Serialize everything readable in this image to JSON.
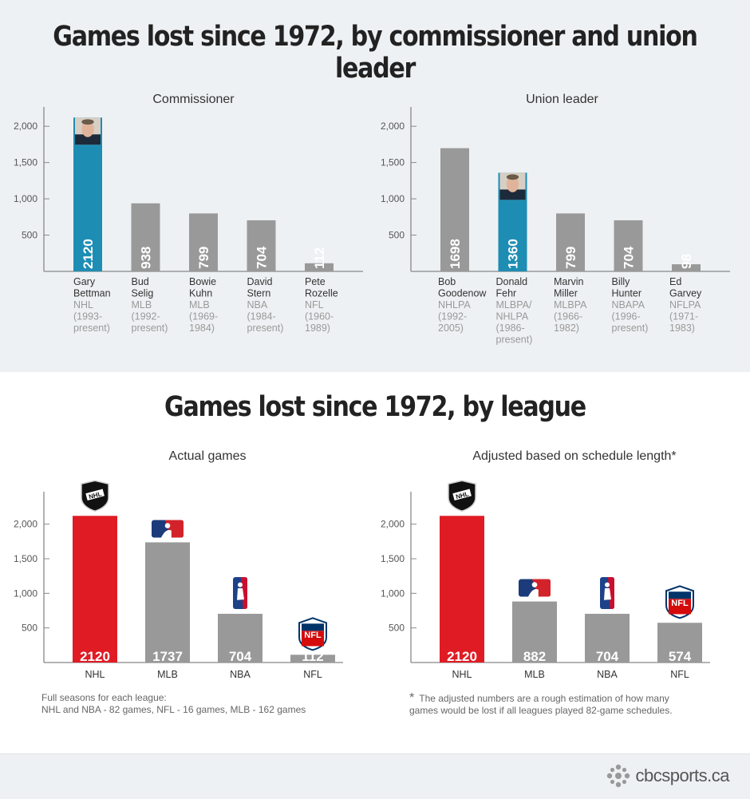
{
  "headings": {
    "top": "Games lost since 1972, by commissioner and union leader",
    "bottom": "Games lost since 1972, by league"
  },
  "colors": {
    "gray": "#999999",
    "blue": "#1e8db4",
    "red": "#e01b24",
    "axis": "#888888"
  },
  "chart_data": [
    {
      "id": "commissioner",
      "type": "bar",
      "title": "Commissioner",
      "yticks": [
        "500",
        "1,000",
        "1,500",
        "2,000"
      ],
      "ylim": [
        0,
        2200
      ],
      "categories": [
        {
          "label": [
            "Gary",
            "Bettman"
          ],
          "sub": [
            "NHL",
            "(1993-",
            "present)"
          ],
          "value": 2120,
          "value_label": "2120",
          "highlight": true,
          "photo": "bettman-photo"
        },
        {
          "label": [
            "Bud",
            "Selig"
          ],
          "sub": [
            "MLB",
            "(1992-",
            "present)"
          ],
          "value": 938,
          "value_label": "938"
        },
        {
          "label": [
            "Bowie",
            "Kuhn"
          ],
          "sub": [
            "MLB",
            "(1969-",
            "1984)"
          ],
          "value": 799,
          "value_label": "799"
        },
        {
          "label": [
            "David",
            "Stern"
          ],
          "sub": [
            "NBA",
            "(1984-",
            "present)"
          ],
          "value": 704,
          "value_label": "704"
        },
        {
          "label": [
            "Pete",
            "Rozelle"
          ],
          "sub": [
            "NFL",
            "(1960-",
            "1989)"
          ],
          "value": 112,
          "value_label": "112"
        }
      ]
    },
    {
      "id": "union",
      "type": "bar",
      "title": "Union leader",
      "yticks": [
        "500",
        "1,000",
        "1,500",
        "2,000"
      ],
      "ylim": [
        0,
        2200
      ],
      "categories": [
        {
          "label": [
            "Bob",
            "Goodenow"
          ],
          "sub": [
            "NHLPA",
            "(1992-",
            "2005)"
          ],
          "value": 1698,
          "value_label": "1698"
        },
        {
          "label": [
            "Donald",
            "Fehr"
          ],
          "sub": [
            "MLBPA/",
            "NHLPA",
            "(1986-",
            "present)"
          ],
          "value": 1360,
          "value_label": "1360",
          "highlight": true,
          "photo": "fehr-photo"
        },
        {
          "label": [
            "Marvin",
            "Miller"
          ],
          "sub": [
            "MLBPA",
            "(1966-",
            "1982)"
          ],
          "value": 799,
          "value_label": "799"
        },
        {
          "label": [
            "Billy",
            "Hunter"
          ],
          "sub": [
            "NBAPA",
            "(1996-",
            "present)"
          ],
          "value": 704,
          "value_label": "704"
        },
        {
          "label": [
            "Ed",
            "Garvey"
          ],
          "sub": [
            "NFLPA",
            "(1971-",
            "1983)"
          ],
          "value": 98,
          "value_label": "98"
        }
      ]
    },
    {
      "id": "actual",
      "type": "bar",
      "title": "Actual games",
      "yticks": [
        "500",
        "1,000",
        "1,500",
        "2,000"
      ],
      "ylim": [
        0,
        2400
      ],
      "categories": [
        {
          "label": [
            "NHL"
          ],
          "value": 2120,
          "value_label": "2120",
          "red": true,
          "logo": "nhl-logo"
        },
        {
          "label": [
            "MLB"
          ],
          "value": 1737,
          "value_label": "1737",
          "logo": "mlb-logo"
        },
        {
          "label": [
            "NBA"
          ],
          "value": 704,
          "value_label": "704",
          "logo": "nba-logo"
        },
        {
          "label": [
            "NFL"
          ],
          "value": 112,
          "value_label": "112",
          "logo": "nfl-logo"
        }
      ]
    },
    {
      "id": "adjusted",
      "type": "bar",
      "title": "Adjusted based on schedule length*",
      "yticks": [
        "500",
        "1,000",
        "1,500",
        "2,000"
      ],
      "ylim": [
        0,
        2400
      ],
      "categories": [
        {
          "label": [
            "NHL"
          ],
          "value": 2120,
          "value_label": "2120",
          "red": true,
          "logo": "nhl-logo"
        },
        {
          "label": [
            "MLB"
          ],
          "value": 882,
          "value_label": "882",
          "logo": "mlb-logo"
        },
        {
          "label": [
            "NBA"
          ],
          "value": 704,
          "value_label": "704",
          "logo": "nba-logo"
        },
        {
          "label": [
            "NFL"
          ],
          "value": 574,
          "value_label": "574",
          "logo": "nfl-logo"
        }
      ]
    }
  ],
  "notes": {
    "full_seasons_line1": "Full seasons for each league:",
    "full_seasons_line2": "NHL and NBA - 82 games, NFL - 16 games, MLB - 162 games",
    "asterisk": "*",
    "adjusted_line1": "The adjusted numbers are a rough estimation of how many",
    "adjusted_line2": "games would be lost if all leagues played 82-game schedules."
  },
  "logo_text": "cbcsports.ca"
}
